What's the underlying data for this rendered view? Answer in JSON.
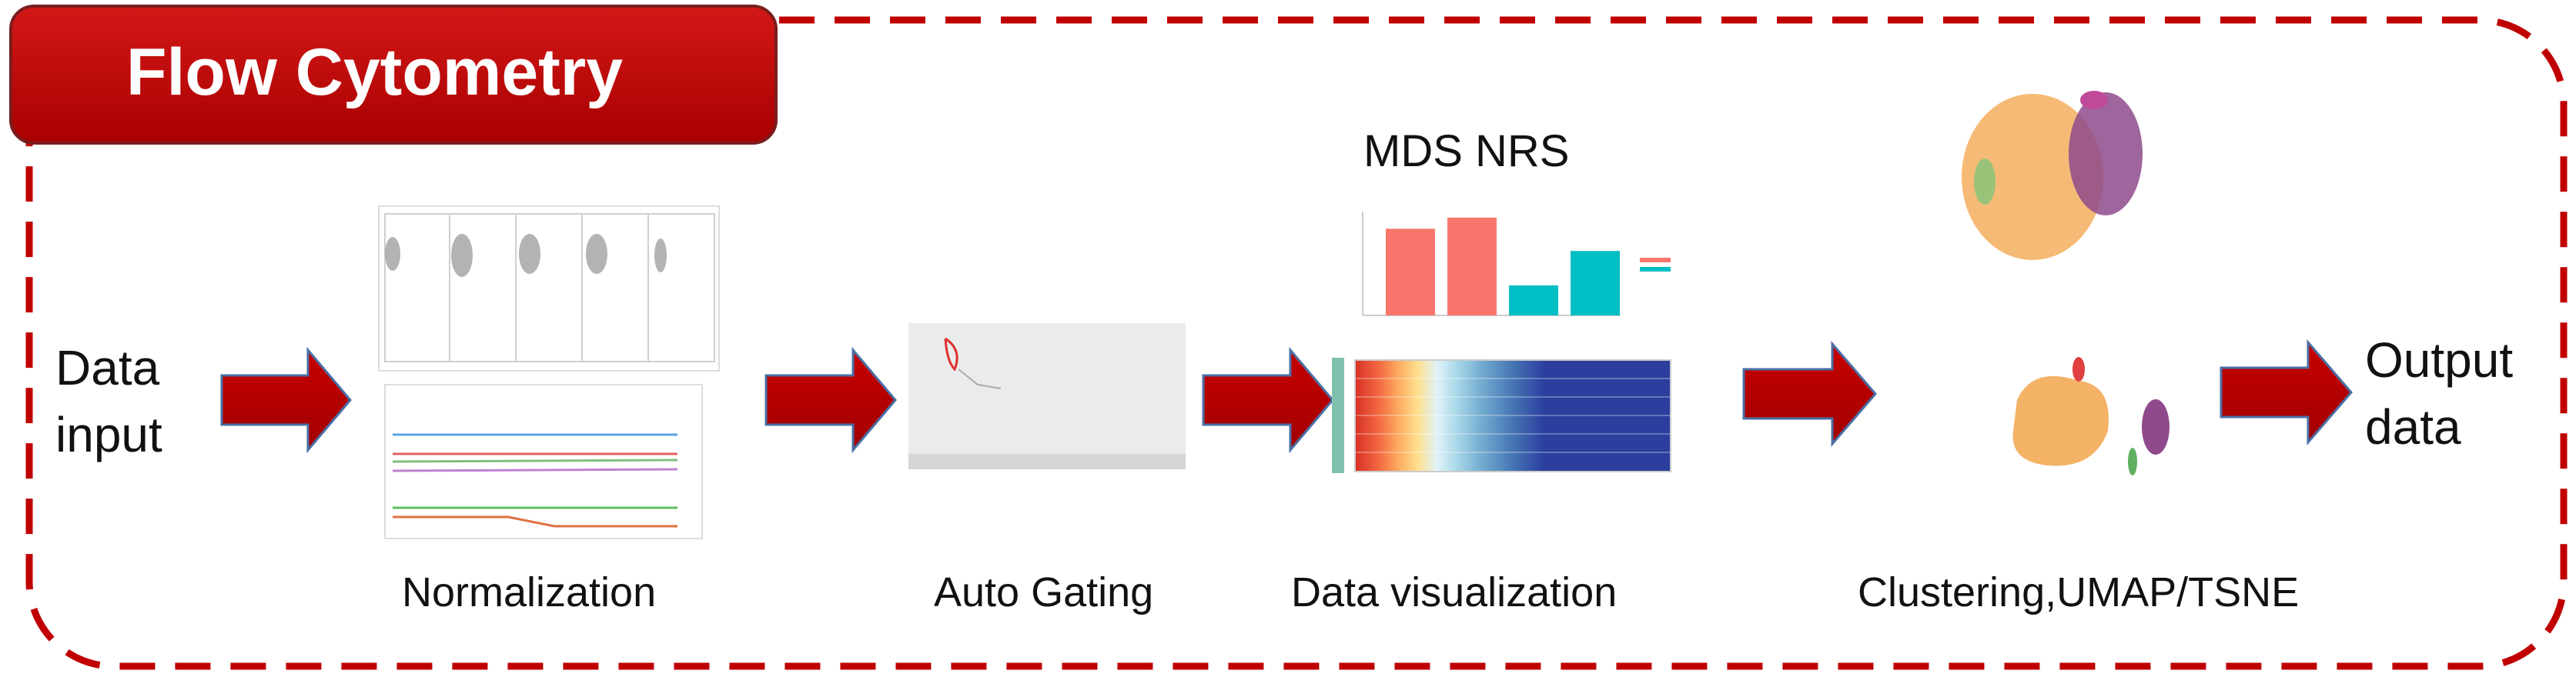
{
  "title": "Flow Cytometry",
  "input_label": [
    "Data",
    "input"
  ],
  "output_label": [
    "Output",
    "data"
  ],
  "steps": {
    "normalization": "Normalization",
    "auto_gating": "Auto Gating",
    "data_visualization": "Data visualization",
    "clustering": "Clustering,UMAP/TSNE"
  },
  "mds_title": "MDS NRS",
  "colors": {
    "accent_red": "#c00000",
    "dash_border": "#c00000",
    "bar_salmon": "#f8766d",
    "bar_teal": "#00bfc4",
    "heat_blue": "#2c3f9e",
    "tsne_orange": "#f4b266",
    "tsne_purple": "#8e4a8c"
  },
  "mini_bar_chart": {
    "type": "bar",
    "values": [
      0.78,
      0.88,
      0.27,
      0.58
    ],
    "colors": [
      "#f8766d",
      "#f8766d",
      "#00bfc4",
      "#00bfc4"
    ]
  }
}
